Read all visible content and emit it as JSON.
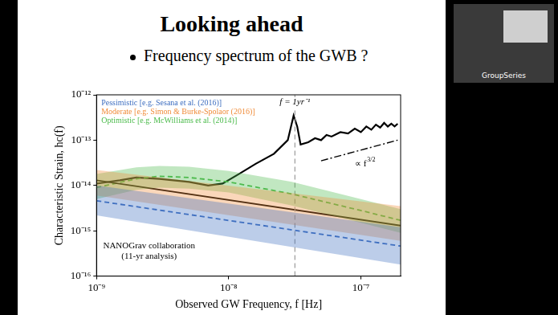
{
  "slide": {
    "title": "Looking ahead",
    "bullet": "Frequency spectrum of the GWB ?",
    "video_label": "GroupSeries"
  },
  "chart_data": {
    "type": "line",
    "x_label": "Observed GW Frequency, f [Hz]",
    "y_label": "Characteristic Strain, hc(f)",
    "log": true,
    "grid": false,
    "legend": "upper left",
    "xlim": [
      1e-09,
      2e-07
    ],
    "ylim": [
      1e-16,
      1e-12
    ],
    "xticks": [
      {
        "value": 1e-09,
        "label": "10⁻⁹"
      },
      {
        "value": 1e-08,
        "label": "10⁻⁸"
      },
      {
        "value": 1e-07,
        "label": "10⁻⁷"
      }
    ],
    "yticks": [
      {
        "value": 1e-16,
        "label": "10⁻¹⁶"
      },
      {
        "value": 1e-15,
        "label": "10⁻¹⁵"
      },
      {
        "value": 1e-14,
        "label": "10⁻¹⁴"
      },
      {
        "value": 1e-13,
        "label": "10⁻¹³"
      },
      {
        "value": 1e-12,
        "label": "10⁻¹²"
      }
    ],
    "series": [
      {
        "name": "Pessimistic [e.g. Sesana et al. (2016)]",
        "color": "#3f6fc0",
        "line_style": "dashed",
        "x": [
          1e-09,
          2e-07
        ],
        "values": [
          4.6e-15,
          4.6e-16
        ],
        "upper": [
          1e-14,
          1.2e-15
        ],
        "lower": [
          2.2e-15,
          1.8e-16
        ]
      },
      {
        "name": "Moderate [e.g. Simon & Burke-Spolaor (2016)]",
        "color": "#f08c3a",
        "line_style": "solid",
        "x": [
          1e-09,
          2e-07
        ],
        "values": [
          1.3e-14,
          1.3e-15
        ],
        "upper": [
          2.2e-14,
          3.5e-15
        ],
        "lower": [
          6e-15,
          6e-16
        ]
      },
      {
        "name": "Optimistic [e.g. McWilliams et al. (2014)]",
        "color": "#4cbb4c",
        "line_style": "dashed",
        "x": [
          1e-09,
          2e-09,
          3e-09,
          5e-09,
          1e-08,
          3e-08,
          1e-07,
          2e-07
        ],
        "values": [
          9e-15,
          1.4e-14,
          1.6e-14,
          1.5e-14,
          1.2e-14,
          6.5e-15,
          2.8e-15,
          1.7e-15
        ],
        "upper": [
          1.8e-14,
          2.5e-14,
          2.7e-14,
          2.6e-14,
          2.1e-14,
          1.2e-14,
          5e-15,
          3e-15
        ],
        "lower": [
          5e-15,
          8e-15,
          9e-15,
          8.5e-15,
          7e-15,
          3.6e-15,
          1.5e-15,
          9e-16
        ]
      },
      {
        "color": "#000000",
        "line_style": "solid",
        "x": [
          1e-09,
          1.5e-09,
          2e-09,
          3e-09,
          5e-09,
          7e-09,
          9e-09,
          1.2e-08,
          1.6e-08,
          2.2e-08,
          2.8e-08,
          3.1e-08,
          3.3e-08,
          3.5e-08,
          4e-08,
          4.5e-08,
          5e-08,
          5.5e-08,
          6e-08,
          7e-08,
          8e-08,
          9e-08,
          1e-07,
          1.1e-07,
          1.2e-07,
          1.3e-07,
          1.4e-07,
          1.5e-07,
          1.6e-07,
          1.7e-07,
          1.8e-07,
          1.9e-07
        ],
        "values": [
          1.1e-14,
          1.3e-14,
          1.5e-14,
          1.4e-14,
          1.2e-14,
          1e-14,
          1.1e-14,
          1.8e-14,
          3e-14,
          5e-14,
          1e-13,
          3.5e-13,
          2e-13,
          8e-14,
          9e-14,
          1.1e-13,
          1e-13,
          1.3e-13,
          1.2e-13,
          1.5e-13,
          1.4e-13,
          1.8e-13,
          1.5e-13,
          2e-13,
          1.7e-13,
          2.2e-13,
          1.9e-13,
          2.4e-13,
          2e-13,
          2.3e-13,
          2e-13,
          2.3e-13
        ]
      },
      {
        "color": "#000000",
        "line_style": "dashdot",
        "x": [
          5e-08,
          1.9e-07
        ],
        "values": [
          3.5e-14,
          1e-13
        ]
      }
    ],
    "reference_lines": [
      {
        "x": 3.17e-08,
        "label": "f = 1yr⁻¹",
        "color": "#9a9a9a",
        "line_style": "dashed"
      }
    ],
    "annotations": [
      {
        "text": [
          "NANOGrav collaboration",
          "(11-yr analysis)"
        ],
        "x": 2.5e-09,
        "y": 3.5e-16
      },
      {
        "text": [
          "∝ f"
        ],
        "superscript": "3/2",
        "x": 9e-08,
        "y": 3e-14
      }
    ]
  }
}
